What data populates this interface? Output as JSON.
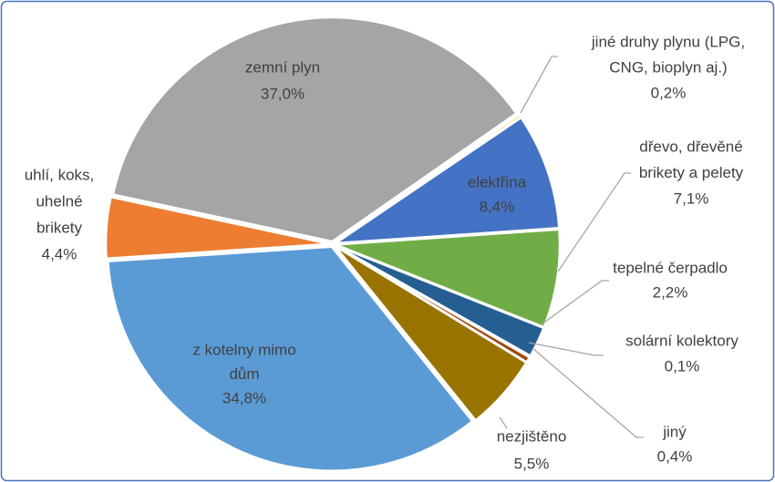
{
  "chart_data": {
    "type": "pie",
    "categories": [
      [
        "zemní plyn"
      ],
      [
        "jiné druhy plynu (LPG,",
        "CNG, bioplyn aj.)"
      ],
      [
        "elektřina"
      ],
      [
        "dřevo, dřevěné",
        "brikety a pelety"
      ],
      [
        "tepelné čerpadlo"
      ],
      [
        "solární kolektory"
      ],
      [
        "jiný"
      ],
      [
        "nezjištěno"
      ],
      [
        "z kotelny mimo",
        "dům"
      ],
      [
        "uhlí, koks,",
        "uhelné",
        "brikety"
      ]
    ],
    "values": [
      37.0,
      0.2,
      8.4,
      7.1,
      2.2,
      0.1,
      0.4,
      5.5,
      34.8,
      4.4
    ],
    "value_labels": [
      "37,0%",
      "0,2%",
      "8,4%",
      "7,1%",
      "2,2%",
      "0,1%",
      "0,4%",
      "5,5%",
      "34,8%",
      "4,4%"
    ],
    "colors": [
      "#a5a5a5",
      "#ffc000",
      "#4472c4",
      "#70ad47",
      "#255e91",
      "#ffc000",
      "#9e480e",
      "#997300",
      "#5b9bd5",
      "#ed7d31"
    ]
  }
}
